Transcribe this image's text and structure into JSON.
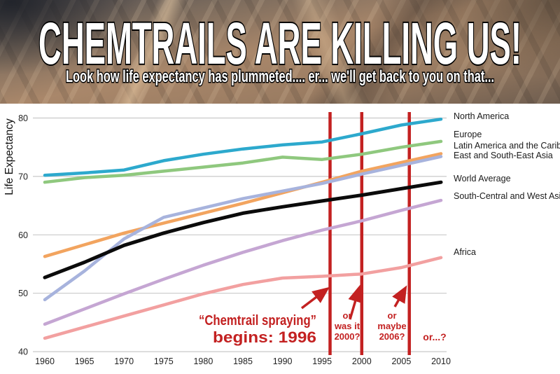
{
  "banner": {
    "title": "CHEMTRAILS ARE KILLING US!",
    "subtitle": "Look how life expectancy has plummeted.... er... we'll get back to you on that..."
  },
  "chart_data": {
    "type": "line",
    "ylabel": "Life Expectancy",
    "x": [
      1960,
      1965,
      1970,
      1975,
      1980,
      1985,
      1990,
      1995,
      2000,
      2005,
      2010
    ],
    "y_ticks": [
      40,
      50,
      60,
      70,
      80
    ],
    "ylim": [
      36,
      82.5
    ],
    "grid": true,
    "legend_position": "right",
    "series": [
      {
        "name": "North America",
        "color": "#2da9cd",
        "values": [
          70.2,
          70.6,
          71.1,
          72.7,
          73.8,
          74.7,
          75.4,
          75.9,
          77.3,
          78.8,
          79.8
        ]
      },
      {
        "name": "Europe",
        "color": "#8fc87e",
        "values": [
          69.0,
          69.8,
          70.2,
          70.9,
          71.6,
          72.3,
          73.3,
          72.9,
          73.8,
          75.0,
          76.0
        ]
      },
      {
        "name": "Latin America and the Caribbean",
        "color": "#f2a45f",
        "values": [
          56.3,
          58.3,
          60.3,
          62.0,
          63.7,
          65.4,
          67.2,
          69.0,
          70.9,
          72.4,
          73.9
        ]
      },
      {
        "name": "East and South-East Asia",
        "color": "#a7b3dd",
        "values": [
          48.9,
          53.8,
          59.3,
          63.0,
          64.6,
          66.2,
          67.5,
          68.8,
          70.4,
          71.9,
          73.4
        ]
      },
      {
        "name": "World Average",
        "color": "#0b0b0b",
        "values": [
          52.7,
          55.3,
          58.2,
          60.3,
          62.1,
          63.7,
          64.8,
          65.8,
          66.8,
          67.9,
          69.0
        ]
      },
      {
        "name": "South-Central and West Asia",
        "color": "#c5a6d3",
        "values": [
          44.7,
          47.3,
          49.9,
          52.4,
          54.8,
          57.0,
          59.0,
          60.8,
          62.4,
          64.2,
          65.9
        ]
      },
      {
        "name": "Africa",
        "color": "#f2a0a0",
        "values": [
          42.3,
          44.2,
          46.1,
          48.0,
          49.9,
          51.5,
          52.6,
          52.9,
          53.3,
          54.4,
          56.1
        ]
      }
    ],
    "vlines": [
      {
        "year": 1996
      },
      {
        "year": 2000
      },
      {
        "year": 2006
      }
    ],
    "annotations": [
      {
        "lines": [
          "“Chemtrail spraying”",
          "begins: 1996"
        ]
      },
      {
        "lines": [
          "or",
          "was it",
          "2000?"
        ]
      },
      {
        "lines": [
          "or",
          "maybe",
          "2006?"
        ]
      },
      {
        "lines": [
          "or...?"
        ]
      }
    ],
    "colors": {
      "grid": "#c9c9c9",
      "axis_text": "#222222",
      "legend_text": "#1a1a1a",
      "vline": "#c32121",
      "annotation": "#c32121"
    }
  }
}
